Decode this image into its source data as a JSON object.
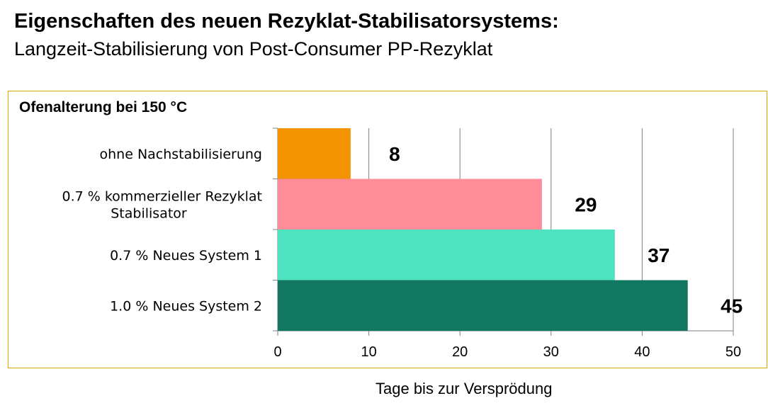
{
  "header": {
    "title": "Eigenschaften des neuen Rezyklat-Stabilisatorsystems:",
    "subtitle": "Langzeit-Stabilisierung von Post-Consumer PP-Rezyklat"
  },
  "chart_data": {
    "type": "bar",
    "orientation": "horizontal",
    "title": "Ofenalterung bei 150 °C",
    "xlabel": "Tage bis zur Versprödung",
    "ylabel": "",
    "xlim": [
      0,
      50
    ],
    "xticks": [
      "0",
      "10",
      "20",
      "30",
      "40",
      "50"
    ],
    "grid": "vertical",
    "categories": [
      [
        "ohne Nachstabilisierung"
      ],
      [
        "0.7 % kommerzieller Rezyklat",
        "Stabilisator"
      ],
      [
        "0.7  % Neues System 1"
      ],
      [
        "1.0 % Neues System 2"
      ]
    ],
    "values": [
      8,
      29,
      37,
      45
    ],
    "value_labels": [
      "8",
      "29",
      "37",
      "45"
    ],
    "colors": [
      "#f29400",
      "#ff8c99",
      "#50e3c2",
      "#127760"
    ],
    "frame_color": "#d9a800"
  }
}
